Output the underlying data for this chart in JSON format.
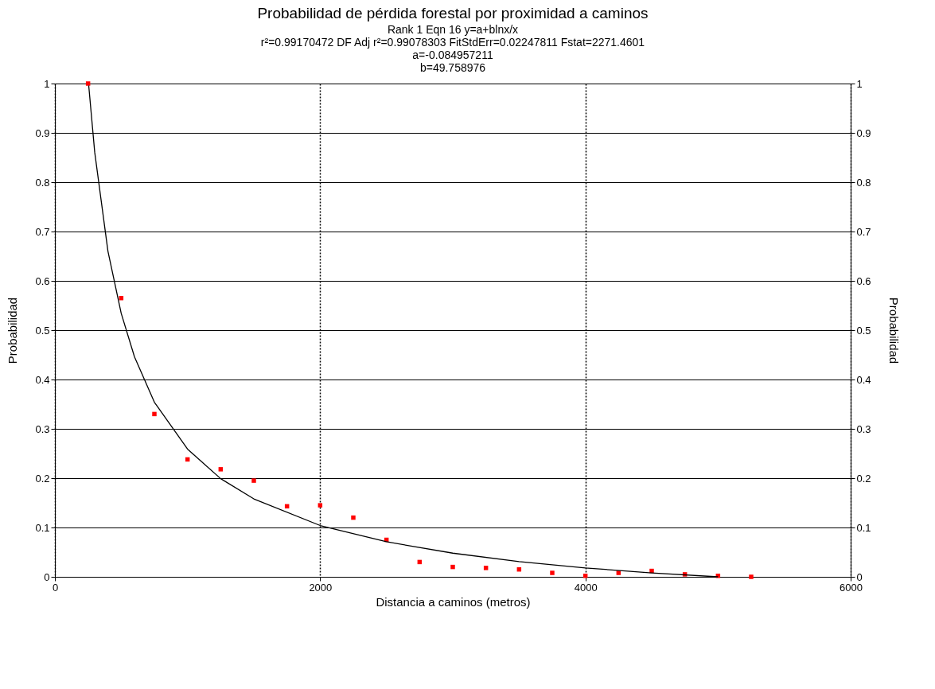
{
  "chart_data": {
    "type": "scatter",
    "title": "Probabilidad de pérdida forestal por proximidad a caminos",
    "subtitle": [
      "Rank 1  Eqn 16  y=a+blnx/x",
      "r²=0.99170472  DF Adj r²=0.99078303  FitStdErr=0.02247811  Fstat=2271.4601",
      "a=-0.084957211",
      "b=49.758976"
    ],
    "xlabel": "Distancia a caminos (metros)",
    "ylabel": "Probabilidad",
    "y2label": "Probabilidad",
    "series": [
      {
        "color": "#ff0000",
        "marker": "square",
        "x": [
          250,
          500,
          750,
          1000,
          1250,
          1500,
          1750,
          2000,
          2250,
          2500,
          2750,
          3000,
          3250,
          3500,
          3750,
          4000,
          4250,
          4500,
          4750,
          5000,
          5250
        ],
        "values": [
          1.0,
          0.565,
          0.33,
          0.238,
          0.218,
          0.195,
          0.143,
          0.145,
          0.12,
          0.075,
          0.03,
          0.02,
          0.018,
          0.015,
          0.008,
          0.002,
          0.008,
          0.012,
          0.005,
          0.002,
          0.0
        ]
      },
      {
        "type": "line",
        "color": "#000000",
        "line_style": "solid",
        "x": [
          255,
          300,
          400,
          500,
          600,
          750,
          1000,
          1250,
          1500,
          2000,
          2500,
          3000,
          3500,
          4000,
          4500,
          5000
        ],
        "values": [
          0.996,
          0.861,
          0.66,
          0.534,
          0.446,
          0.354,
          0.259,
          0.199,
          0.158,
          0.104,
          0.071,
          0.048,
          0.031,
          0.018,
          0.008,
          0.0
        ]
      }
    ],
    "xlim": [
      0,
      6000
    ],
    "xticks": [
      0,
      2000,
      4000,
      6000
    ],
    "ylim": [
      0,
      1
    ],
    "yticks": [
      0,
      0.1,
      0.2,
      0.3,
      0.4,
      0.5,
      0.6,
      0.7,
      0.8,
      0.9,
      1
    ],
    "y2lim": [
      0,
      1
    ],
    "y2ticks": [
      0,
      0.1,
      0.2,
      0.3,
      0.4,
      0.5,
      0.6,
      0.7,
      0.8,
      0.9,
      1
    ],
    "grid": true
  }
}
